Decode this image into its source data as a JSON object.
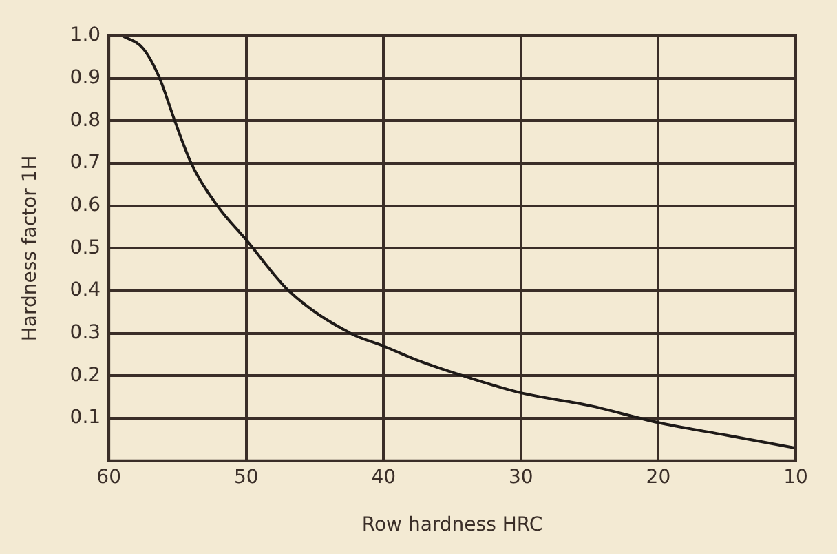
{
  "chart_data": {
    "type": "line",
    "xlabel": "Row hardness HRC",
    "ylabel": "Hardness factor 1H",
    "x": [
      59,
      57.5,
      56.3,
      55.2,
      54,
      52.1,
      50,
      46.9,
      42.4,
      40,
      37.8,
      34.2,
      30,
      25,
      20,
      15,
      10
    ],
    "series": [
      {
        "color": "#1e1a18",
        "values": [
          1.0,
          0.97,
          0.9,
          0.8,
          0.7,
          0.6,
          0.52,
          0.4,
          0.3,
          0.27,
          0.24,
          0.2,
          0.16,
          0.13,
          0.09,
          0.06,
          0.03
        ]
      }
    ],
    "xlim": [
      60,
      10
    ],
    "xticks": [
      60,
      50,
      40,
      30,
      20,
      10
    ],
    "ylim": [
      0,
      1
    ],
    "yticks": [
      0.1,
      0.2,
      0.3,
      0.4,
      0.5,
      0.6,
      0.7,
      0.8,
      0.9,
      {
        "value": 1,
        "label": "1.0"
      }
    ],
    "grid": true,
    "legend": false,
    "marker": "none",
    "line_style": "solid"
  }
}
